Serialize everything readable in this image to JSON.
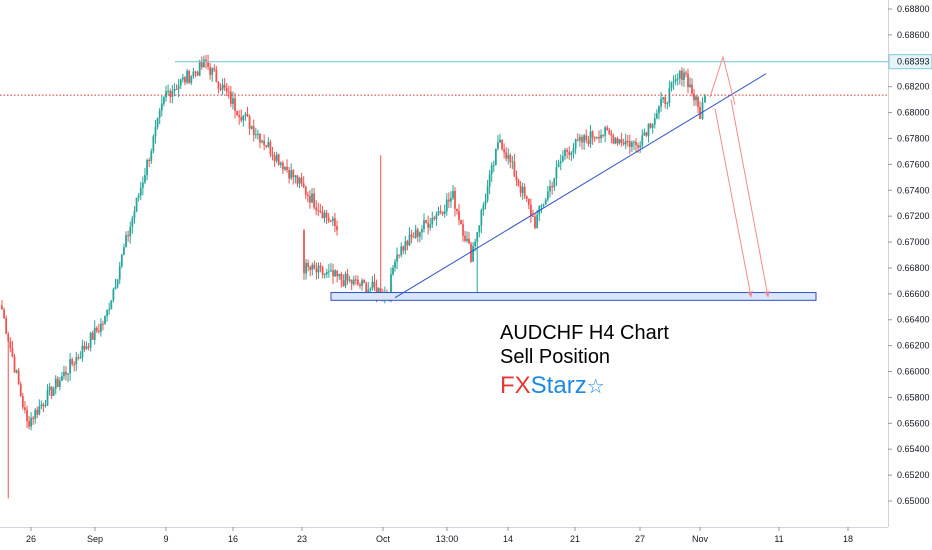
{
  "chart_data": {
    "type": "candlestick",
    "symbol_note": "AUDCHF H4 Chart",
    "y_axis": {
      "ticks": [
        "0.68800",
        "0.68600",
        "0.68400",
        "0.68200",
        "0.68000",
        "0.67800",
        "0.67600",
        "0.67400",
        "0.67200",
        "0.67000",
        "0.66800",
        "0.66600",
        "0.66400",
        "0.66200",
        "0.66000",
        "0.65800",
        "0.65600",
        "0.65400",
        "0.65200",
        "0.65000"
      ],
      "ylim": [
        0.649,
        0.6895
      ]
    },
    "x_axis": {
      "ticks": [
        "26",
        "Sep",
        "9",
        "16",
        "23",
        "Oct",
        "13:00",
        "14",
        "21",
        "27",
        "Nov",
        "11",
        "18"
      ]
    },
    "price_label": "0.68393",
    "resistance_level": 0.68393,
    "current_price": 0.68135,
    "support_zone": [
      0.6655,
      0.6661
    ],
    "trendline": {
      "from_x": "Oct",
      "from": 0.6657,
      "to": 0.683
    },
    "path_key_prices": [
      {
        "x": "26",
        "price": 0.6648
      },
      {
        "x": "26",
        "price": 0.656
      },
      {
        "x": "Sep",
        "price": 0.664
      },
      {
        "x": "9",
        "price": 0.6815
      },
      {
        "x": "9",
        "price": 0.6838
      },
      {
        "x": "16",
        "price": 0.6805
      },
      {
        "x": "23",
        "price": 0.671
      },
      {
        "x": "23",
        "price": 0.668
      },
      {
        "x": "Oct",
        "price": 0.666
      },
      {
        "x": "Oct",
        "price": 0.669
      },
      {
        "x": "13:00",
        "price": 0.6735
      },
      {
        "x": "13:00",
        "price": 0.669
      },
      {
        "x": "14",
        "price": 0.678
      },
      {
        "x": "14",
        "price": 0.6715
      },
      {
        "x": "21",
        "price": 0.677
      },
      {
        "x": "21",
        "price": 0.6785
      },
      {
        "x": "27",
        "price": 0.6775
      },
      {
        "x": "27",
        "price": 0.6833
      },
      {
        "x": "Nov",
        "price": 0.6799
      },
      {
        "x": "Nov",
        "price": 0.6813
      }
    ],
    "colors": {
      "up": "#26a69a",
      "down": "#ef5350",
      "resistance": "#7fc9d8",
      "trendline": "#2b52c8",
      "support_fill": "#dbe6f8",
      "support_stroke": "#2b52c8",
      "arrows": "#f28b8b",
      "current_price_line": "#e03030"
    }
  },
  "annotation": {
    "title": "AUDCHF H4 Chart",
    "subtitle": "Sell Position"
  },
  "brand": {
    "part1": "FX",
    "part2": "Starz",
    "star": "☆"
  }
}
